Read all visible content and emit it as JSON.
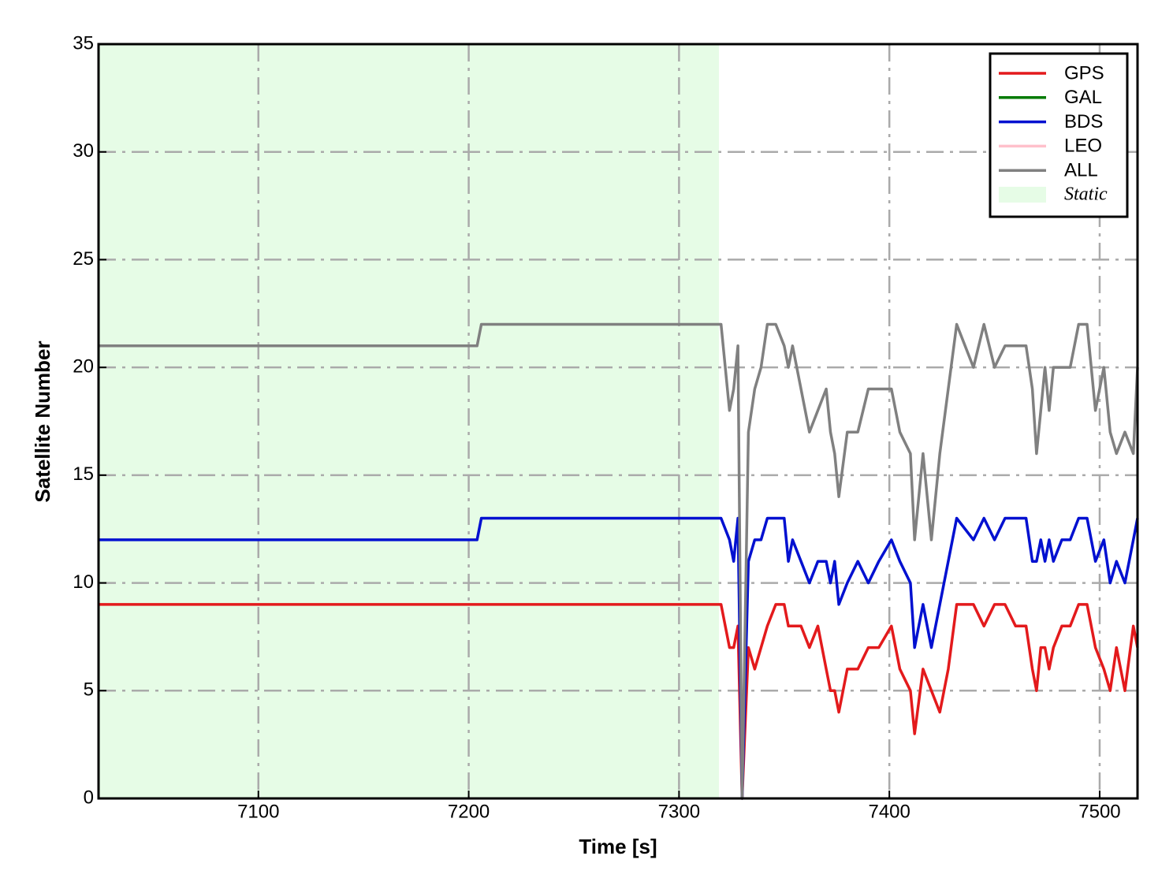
{
  "chart_data": {
    "type": "line",
    "xlabel": "Time [s]",
    "ylabel": "Satellite Number",
    "x": [
      7024,
      7204,
      7206,
      7320,
      7324,
      7326,
      7328,
      7330,
      7333,
      7336,
      7339,
      7342,
      7346,
      7350,
      7352,
      7354,
      7358,
      7362,
      7366,
      7370,
      7372,
      7374,
      7376,
      7380,
      7385,
      7390,
      7395,
      7401,
      7405,
      7410,
      7412,
      7416,
      7420,
      7424,
      7428,
      7432,
      7440,
      7445,
      7450,
      7455,
      7460,
      7465,
      7468,
      7470,
      7472,
      7474,
      7476,
      7478,
      7482,
      7486,
      7490,
      7494,
      7498,
      7502,
      7505,
      7508,
      7512,
      7516,
      7518
    ],
    "series": [
      {
        "name": "GPS",
        "color": "#e31a1c",
        "values": [
          9,
          9,
          9,
          9,
          7,
          7,
          8,
          0,
          7,
          6,
          7,
          8,
          9,
          9,
          8,
          8,
          8,
          7,
          8,
          6,
          5,
          5,
          4,
          6,
          6,
          7,
          7,
          8,
          6,
          5,
          3,
          6,
          5,
          4,
          6,
          9,
          9,
          8,
          9,
          9,
          8,
          8,
          6,
          5,
          7,
          7,
          6,
          7,
          8,
          8,
          9,
          9,
          7,
          6,
          5,
          7,
          5,
          8,
          7
        ]
      },
      {
        "name": "GAL",
        "color": "#007a00",
        "values": [
          null,
          null,
          null,
          null,
          null,
          null,
          null,
          null,
          null,
          null,
          null,
          null,
          null,
          null,
          null,
          null,
          null,
          null,
          null,
          null,
          null,
          null,
          null,
          null,
          null,
          null,
          null,
          null,
          null,
          null,
          null,
          null,
          null,
          null,
          null,
          null,
          null,
          null,
          null,
          null,
          null,
          null,
          null,
          null,
          null,
          null,
          null,
          null,
          null,
          null,
          null,
          null,
          null,
          null,
          null,
          null,
          null,
          null,
          null
        ]
      },
      {
        "name": "BDS",
        "color": "#0010d0",
        "values": [
          12,
          12,
          13,
          13,
          12,
          11,
          13,
          0,
          11,
          12,
          12,
          13,
          13,
          13,
          11,
          12,
          11,
          10,
          11,
          11,
          10,
          11,
          9,
          10,
          11,
          10,
          11,
          12,
          11,
          10,
          7,
          9,
          7,
          9,
          11,
          13,
          12,
          13,
          12,
          13,
          13,
          13,
          11,
          11,
          12,
          11,
          12,
          11,
          12,
          12,
          13,
          13,
          11,
          12,
          10,
          11,
          10,
          12,
          13
        ]
      },
      {
        "name": "LEO",
        "color": "#ffc0cb",
        "values": [
          null,
          null,
          null,
          null,
          null,
          null,
          null,
          null,
          null,
          null,
          null,
          null,
          null,
          null,
          null,
          null,
          null,
          null,
          null,
          null,
          null,
          null,
          null,
          null,
          null,
          null,
          null,
          null,
          null,
          null,
          null,
          null,
          null,
          null,
          null,
          null,
          null,
          null,
          null,
          null,
          null,
          null,
          null,
          null,
          null,
          null,
          null,
          null,
          null,
          null,
          null,
          null,
          null,
          null,
          null,
          null,
          null,
          null,
          null
        ]
      },
      {
        "name": "ALL",
        "color": "#808080",
        "values": [
          21,
          21,
          22,
          22,
          18,
          19,
          21,
          0,
          17,
          19,
          20,
          22,
          22,
          21,
          20,
          21,
          19,
          17,
          18,
          19,
          17,
          16,
          14,
          17,
          17,
          19,
          19,
          19,
          17,
          16,
          12,
          16,
          12,
          16,
          19,
          22,
          20,
          22,
          20,
          21,
          21,
          21,
          19,
          16,
          18,
          20,
          18,
          20,
          20,
          20,
          22,
          22,
          18,
          20,
          17,
          16,
          17,
          16,
          20
        ]
      }
    ],
    "static_span": {
      "label": "Static",
      "range": [
        7024,
        7319
      ],
      "color": "#e6fce6"
    },
    "xlim": [
      7024,
      7518
    ],
    "xticks": [
      7100,
      7200,
      7300,
      7400,
      7500
    ],
    "ylim": [
      0,
      35
    ],
    "yticks": [
      0,
      5,
      10,
      15,
      20,
      25,
      30,
      35
    ],
    "grid": true,
    "legend": "upper right"
  }
}
